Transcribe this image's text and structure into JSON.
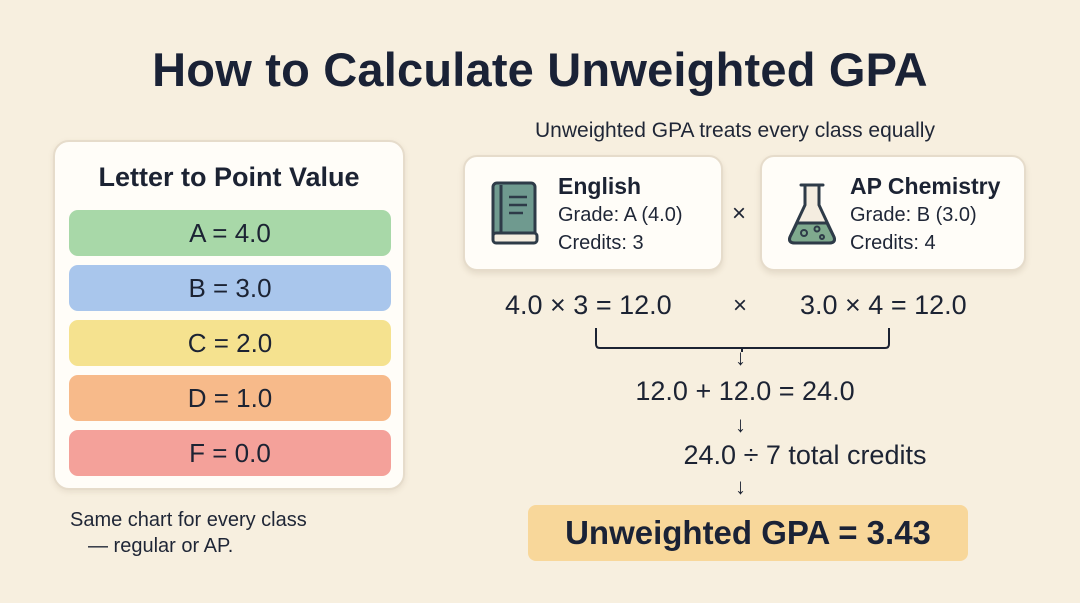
{
  "title": "How to Calculate Unweighted GPA",
  "subtitle": "Unweighted GPA treats every class equally",
  "scale": {
    "title": "Letter to Point Value",
    "rows": [
      {
        "label": "A = 4.0",
        "color": "#a8d8a8"
      },
      {
        "label": "B = 3.0",
        "color": "#a9c6ec"
      },
      {
        "label": "C = 2.0",
        "color": "#f5e28f"
      },
      {
        "label": "D = 1.0",
        "color": "#f7ba8a"
      },
      {
        "label": "F = 0.0",
        "color": "#f4a19a"
      }
    ],
    "note_line1": "Same chart for every class",
    "note_line2": "— regular or AP."
  },
  "courses": [
    {
      "name": "English",
      "grade": "Grade: A (4.0)",
      "credits": "Credits: 3",
      "icon": "book-icon"
    },
    {
      "name": "AP Chemistry",
      "grade": "Grade: B (3.0)",
      "credits": "Credits: 4",
      "icon": "flask-icon"
    }
  ],
  "multiply_symbol": "×",
  "calc": {
    "english": "4.0 × 3 = 12.0",
    "chemistry": "3.0 × 4 = 12.0",
    "sum": "12.0 + 12.0 = 24.0",
    "divide": "24.0 ÷ 7 total credits",
    "result": "Unweighted GPA = 3.43"
  },
  "arrow_symbol": "↓"
}
